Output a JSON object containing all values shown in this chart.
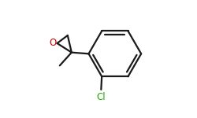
{
  "bg_color": "#ffffff",
  "bond_color": "#1a1a1a",
  "o_color": "#cc0000",
  "cl_color": "#22aa00",
  "line_width": 1.6,
  "figsize": [
    2.5,
    1.5
  ],
  "dpi": 100,
  "xlim": [
    0.0,
    1.0
  ],
  "ylim": [
    0.05,
    0.95
  ]
}
